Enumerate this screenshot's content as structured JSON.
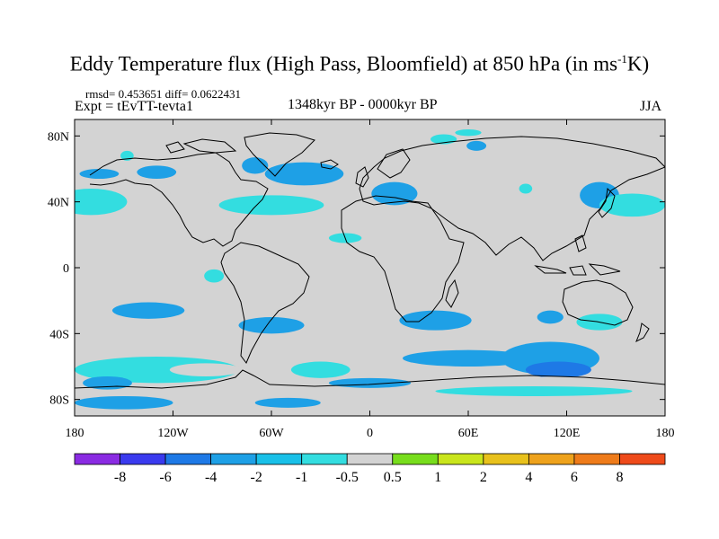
{
  "title": {
    "main": "Eddy Temperature flux (High Pass, Bloomfield) at 850 hPa (in ms",
    "sup": "-1",
    "end": "K)"
  },
  "stats": "rmsd= 0.453651 diff= 0.0622431",
  "experiment": "Expt = tEvTT-tevta1",
  "period": "1348kyr BP - 0000kyr BP",
  "season": "JJA",
  "map": {
    "lon_range": [
      -180,
      180
    ],
    "lat_range": [
      -90,
      90
    ],
    "background_color": "#d3d3d3",
    "lat_ticks": [
      {
        "value": 80,
        "label": "80N"
      },
      {
        "value": 40,
        "label": "40N"
      },
      {
        "value": 0,
        "label": "0"
      },
      {
        "value": -40,
        "label": "40S"
      },
      {
        "value": -80,
        "label": "80S"
      }
    ],
    "lon_ticks": [
      {
        "value": -180,
        "label": "180"
      },
      {
        "value": -120,
        "label": "120W"
      },
      {
        "value": -60,
        "label": "60W"
      },
      {
        "value": 0,
        "label": "0"
      },
      {
        "value": 60,
        "label": "60E"
      },
      {
        "value": 120,
        "label": "120E"
      },
      {
        "value": 180,
        "label": "180"
      }
    ],
    "anomalies": [
      {
        "lon": -170,
        "lat": 40,
        "rlon": 22,
        "rlat": 8,
        "c": 5
      },
      {
        "lon": -110,
        "lat": 44,
        "rlon": 12,
        "rlat": 8,
        "c": 6
      },
      {
        "lon": -60,
        "lat": 38,
        "rlon": 32,
        "rlat": 6,
        "c": 5
      },
      {
        "lon": -40,
        "lat": 57,
        "rlon": 24,
        "rlat": 7,
        "c": 3
      },
      {
        "lon": -70,
        "lat": 62,
        "rlon": 8,
        "rlat": 5,
        "c": 3
      },
      {
        "lon": -130,
        "lat": 58,
        "rlon": 12,
        "rlat": 4,
        "c": 3
      },
      {
        "lon": -165,
        "lat": 57,
        "rlon": 12,
        "rlat": 3,
        "c": 3
      },
      {
        "lon": -148,
        "lat": 68,
        "rlon": 4,
        "rlat": 3,
        "c": 5
      },
      {
        "lon": 15,
        "lat": 45,
        "rlon": 14,
        "rlat": 7,
        "c": 3
      },
      {
        "lon": 45,
        "lat": 78,
        "rlon": 8,
        "rlat": 3,
        "c": 5
      },
      {
        "lon": 65,
        "lat": 74,
        "rlon": 6,
        "rlat": 3,
        "c": 3
      },
      {
        "lon": 60,
        "lat": 82,
        "rlon": 8,
        "rlat": 2,
        "c": 5
      },
      {
        "lon": 95,
        "lat": 48,
        "rlon": 4,
        "rlat": 3,
        "c": 5
      },
      {
        "lon": 140,
        "lat": 44,
        "rlon": 12,
        "rlat": 8,
        "c": 3
      },
      {
        "lon": 160,
        "lat": 38,
        "rlon": 20,
        "rlat": 7,
        "c": 5
      },
      {
        "lon": -15,
        "lat": 18,
        "rlon": 10,
        "rlat": 3,
        "c": 5
      },
      {
        "lon": -135,
        "lat": -26,
        "rlon": 22,
        "rlat": 5,
        "c": 3
      },
      {
        "lon": -60,
        "lat": -35,
        "rlon": 20,
        "rlat": 5,
        "c": 3
      },
      {
        "lon": -95,
        "lat": -5,
        "rlon": 6,
        "rlat": 4,
        "c": 5
      },
      {
        "lon": 40,
        "lat": -32,
        "rlon": 22,
        "rlat": 6,
        "c": 3
      },
      {
        "lon": 110,
        "lat": -30,
        "rlon": 8,
        "rlat": 4,
        "c": 3
      },
      {
        "lon": 140,
        "lat": -33,
        "rlon": 14,
        "rlat": 5,
        "c": 5
      },
      {
        "lon": -130,
        "lat": -62,
        "rlon": 50,
        "rlat": 8,
        "c": 5
      },
      {
        "lon": -100,
        "lat": -62,
        "rlon": 22,
        "rlat": 4,
        "c": 6
      },
      {
        "lon": -30,
        "lat": -62,
        "rlon": 18,
        "rlat": 5,
        "c": 5
      },
      {
        "lon": 60,
        "lat": -55,
        "rlon": 40,
        "rlat": 5,
        "c": 3
      },
      {
        "lon": 110,
        "lat": -55,
        "rlon": 30,
        "rlat": 10,
        "c": 3
      },
      {
        "lon": 115,
        "lat": -62,
        "rlon": 20,
        "rlat": 5,
        "c": 2
      },
      {
        "lon": 120,
        "lat": -70,
        "rlon": 40,
        "rlat": 4,
        "c": 6
      },
      {
        "lon": 100,
        "lat": -75,
        "rlon": 60,
        "rlat": 3,
        "c": 5
      },
      {
        "lon": -150,
        "lat": -82,
        "rlon": 30,
        "rlat": 4,
        "c": 3
      },
      {
        "lon": -50,
        "lat": -82,
        "rlon": 20,
        "rlat": 3,
        "c": 3
      },
      {
        "lon": 0,
        "lat": -70,
        "rlon": 25,
        "rlat": 3,
        "c": 3
      },
      {
        "lon": -160,
        "lat": -70,
        "rlon": 15,
        "rlat": 4,
        "c": 3
      }
    ]
  },
  "colorbar": {
    "colors": [
      "#8a2be2",
      "#3a3aee",
      "#1e79e6",
      "#1ea0e6",
      "#19c0e8",
      "#33dde0",
      "#d3d3d3",
      "#77dd1c",
      "#c9e51c",
      "#e8c11c",
      "#eea21c",
      "#ee7b1a",
      "#ee4a1a"
    ],
    "labels": [
      "-8",
      "-6",
      "-4",
      "-2",
      "-1",
      "-0.5",
      "0.5",
      "1",
      "2",
      "4",
      "6",
      "8"
    ]
  }
}
